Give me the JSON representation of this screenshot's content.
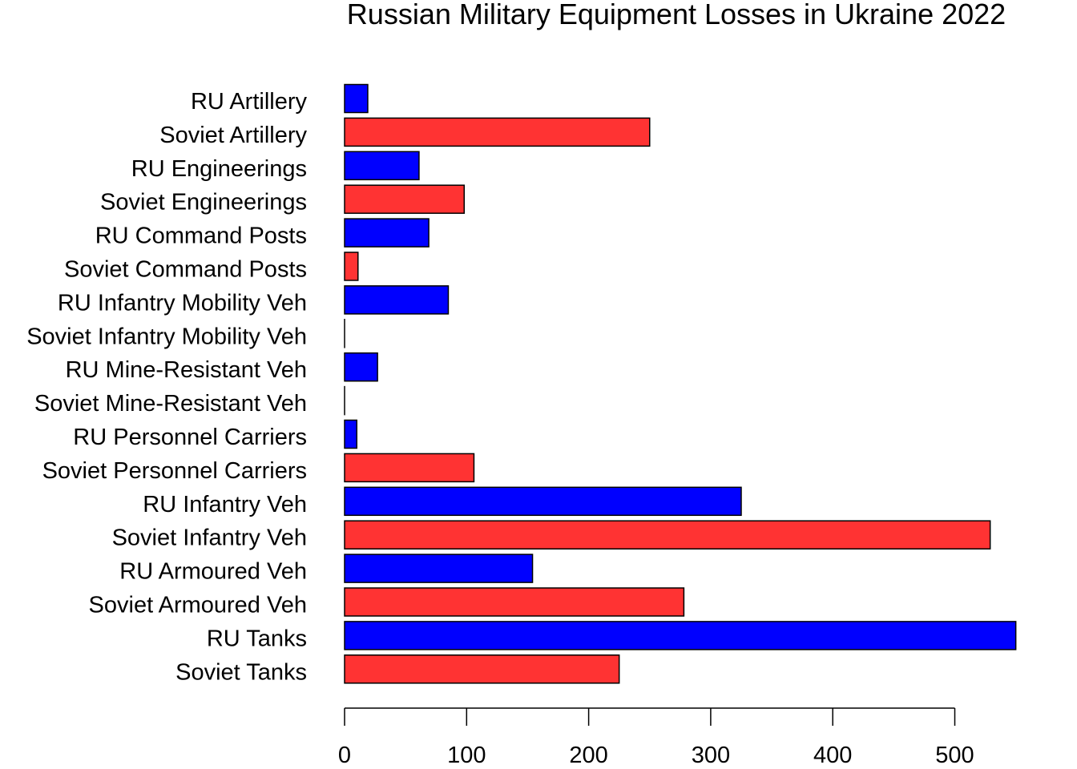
{
  "chart_data": {
    "type": "bar",
    "orientation": "horizontal",
    "title": "Russian Military Equipment Losses in Ukraine 2022",
    "xlabel": "",
    "ylabel": "",
    "xlim": [
      0,
      550
    ],
    "grid": false,
    "x_ticks": [
      0,
      100,
      200,
      300,
      400,
      500
    ],
    "categories": [
      "RU Artillery",
      "Soviet Artillery",
      "RU Engineerings",
      "Soviet Engineerings",
      "RU Command Posts",
      "Soviet Command Posts",
      "RU Infantry Mobility Veh",
      "Soviet Infantry Mobility Veh",
      "RU Mine-Resistant Veh",
      "Soviet Mine-Resistant Veh",
      "RU Personnel Carriers",
      "Soviet Personnel Carriers",
      "RU Infantry Veh",
      "Soviet Infantry Veh",
      "RU Armoured Veh",
      "Soviet Armoured Veh",
      "RU Tanks",
      "Soviet Tanks"
    ],
    "values": [
      19,
      250,
      61,
      98,
      69,
      11,
      85,
      0,
      27,
      0,
      10,
      106,
      325,
      529,
      154,
      278,
      550,
      225
    ],
    "colors": {
      "ru": "#0000ff",
      "soviet": "#ff3333",
      "outline": "#000000"
    }
  }
}
